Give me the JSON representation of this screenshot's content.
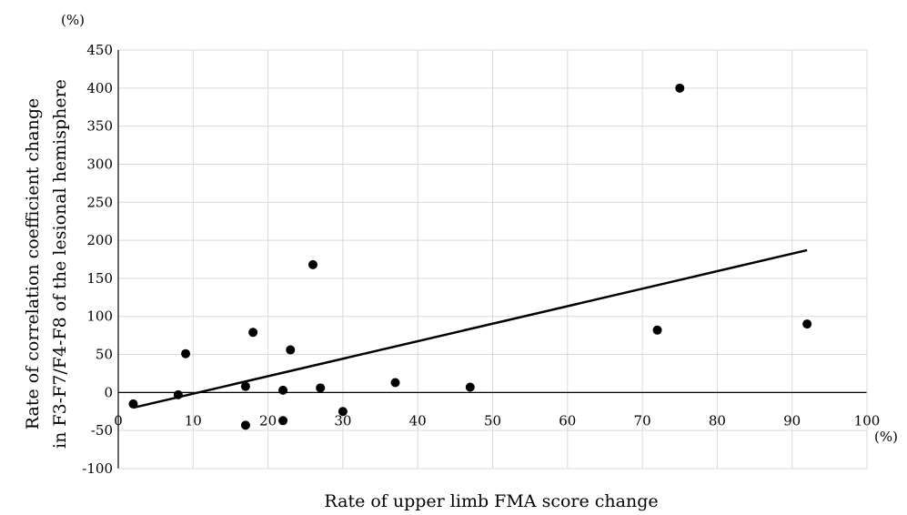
{
  "chart_data": {
    "type": "scatter",
    "title": "",
    "xlabel": "Rate of upper limb FMA score change",
    "ylabel": [
      "Rate of correlation coefficient change",
      "in F3-F7/F4-F8 of the lesional hemisphere"
    ],
    "x_unit": "(%)",
    "y_unit": "(%)",
    "xlim": [
      0,
      100
    ],
    "ylim": [
      -100,
      450
    ],
    "x_ticks": [
      "0",
      "10",
      "20",
      "30",
      "40",
      "50",
      "60",
      "70",
      "80",
      "90",
      "100"
    ],
    "y_ticks": [
      "-100",
      "-50",
      "0",
      "50",
      "100",
      "150",
      "200",
      "250",
      "300",
      "350",
      "400",
      "450"
    ],
    "grid": true,
    "points": [
      {
        "x": 2,
        "y": -15
      },
      {
        "x": 8,
        "y": -3
      },
      {
        "x": 9,
        "y": 51
      },
      {
        "x": 17,
        "y": 8
      },
      {
        "x": 17,
        "y": -43
      },
      {
        "x": 18,
        "y": 79
      },
      {
        "x": 22,
        "y": 3
      },
      {
        "x": 22,
        "y": -37
      },
      {
        "x": 23,
        "y": 56
      },
      {
        "x": 26,
        "y": 168
      },
      {
        "x": 27,
        "y": 6
      },
      {
        "x": 30,
        "y": -25
      },
      {
        "x": 37,
        "y": 13
      },
      {
        "x": 47,
        "y": 7
      },
      {
        "x": 72,
        "y": 82
      },
      {
        "x": 75,
        "y": 400
      },
      {
        "x": 92,
        "y": 90
      }
    ],
    "trendline": {
      "x": [
        2,
        92
      ],
      "y": [
        -20,
        187
      ]
    }
  }
}
